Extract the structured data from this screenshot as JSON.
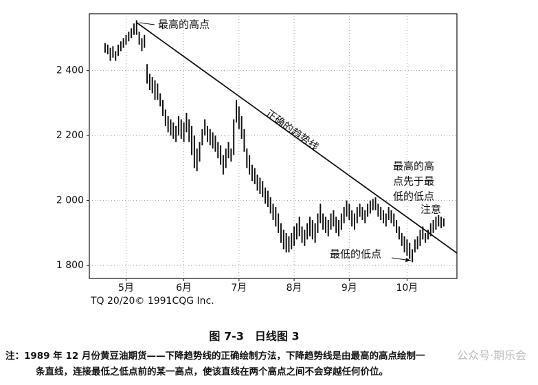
{
  "chart_data": {
    "type": "ohlc",
    "annotations": [
      "最高的高点",
      "正确的趋势线",
      "最高的高",
      "点先于最",
      "低的低点",
      "注意",
      "最低的低点"
    ],
    "xlim": [
      -6,
      134
    ],
    "xticks": [
      {
        "value": 8,
        "label": "5月"
      },
      {
        "value": 30,
        "label": "6月"
      },
      {
        "value": 51,
        "label": "7月"
      },
      {
        "value": 72,
        "label": "8月"
      },
      {
        "value": 93,
        "label": "9月"
      },
      {
        "value": 115,
        "label": "10月"
      }
    ],
    "ylim": [
      1760,
      2575
    ],
    "yticks": [
      {
        "value": 1800,
        "label": "1 800"
      },
      {
        "value": 2000,
        "label": "2 000"
      },
      {
        "value": 2200,
        "label": "2 200"
      },
      {
        "value": 2400,
        "label": "2 400"
      }
    ],
    "grid": true,
    "color": "#111111",
    "high": [
      2485,
      2480,
      2470,
      2475,
      2460,
      2480,
      2490,
      2500,
      2510,
      2520,
      2530,
      2545,
      2555,
      2520,
      2500,
      2510,
      2420,
      2390,
      2380,
      2370,
      2360,
      2330,
      2310,
      2280,
      2260,
      2250,
      2240,
      2230,
      2260,
      2250,
      2240,
      2270,
      2250,
      2230,
      2200,
      2160,
      2180,
      2220,
      2250,
      2230,
      2220,
      2210,
      2200,
      2180,
      2170,
      2140,
      2160,
      2180,
      2160,
      2250,
      2310,
      2290,
      2260,
      2220,
      2160,
      2140,
      2110,
      2100,
      2080,
      2070,
      2060,
      2040,
      2030,
      2010,
      1990,
      1980,
      1960,
      1930,
      1910,
      1900,
      1890,
      1900,
      1920,
      1930,
      1950,
      1920,
      1910,
      1930,
      1950,
      1940,
      1930,
      1960,
      1990,
      1960,
      1950,
      1940,
      1960,
      1970,
      1950,
      1940,
      1960,
      1980,
      2000,
      1990,
      1970,
      1960,
      1980,
      1990,
      1980,
      1970,
      1990,
      2000,
      2005,
      2010,
      1990,
      1980,
      1970,
      1960,
      1980,
      1970,
      1960,
      1940,
      1920,
      1900,
      1890,
      1880,
      1870,
      1850,
      1880,
      1890,
      1910,
      1920,
      1900,
      1910,
      1930,
      1940,
      1950,
      1955,
      1950,
      1945
    ],
    "low": [
      2455,
      2450,
      2430,
      2440,
      2430,
      2445,
      2460,
      2470,
      2480,
      2490,
      2500,
      2510,
      2510,
      2480,
      2460,
      2470,
      2360,
      2340,
      2330,
      2310,
      2310,
      2290,
      2260,
      2230,
      2210,
      2200,
      2190,
      2180,
      2200,
      2190,
      2180,
      2210,
      2180,
      2140,
      2100,
      2090,
      2120,
      2170,
      2200,
      2180,
      2170,
      2160,
      2150,
      2130,
      2110,
      2080,
      2100,
      2130,
      2120,
      2140,
      2240,
      2220,
      2190,
      2150,
      2100,
      2080,
      2060,
      2050,
      2030,
      2020,
      2010,
      1990,
      1980,
      1960,
      1940,
      1920,
      1900,
      1870,
      1850,
      1840,
      1840,
      1850,
      1860,
      1880,
      1890,
      1870,
      1860,
      1880,
      1890,
      1880,
      1870,
      1900,
      1930,
      1910,
      1900,
      1890,
      1910,
      1920,
      1900,
      1890,
      1910,
      1930,
      1950,
      1940,
      1920,
      1910,
      1930,
      1950,
      1940,
      1930,
      1950,
      1960,
      1970,
      1970,
      1950,
      1940,
      1930,
      1920,
      1940,
      1930,
      1920,
      1900,
      1880,
      1860,
      1840,
      1830,
      1820,
      1810,
      1840,
      1850,
      1860,
      1880,
      1870,
      1880,
      1890,
      1900,
      1910,
      1920,
      1915,
      1920
    ],
    "trendline": {
      "x": [
        12,
        134
      ],
      "y": [
        2548,
        1838
      ]
    },
    "source": "TQ 20/20© 1991CQG Inc.",
    "caption": "图 7-3　日线图 3",
    "notes": [
      "注：1989 年 12 月份黄豆油期货——下降趋势线的正确绘制方法，下降趋势线是由最高的高点绘制一",
      "条直线，连接最低之低点前的某一高点，使该直线在两个高点之间不会穿越任何价位。"
    ],
    "watermark": "公众号·期乐会"
  }
}
